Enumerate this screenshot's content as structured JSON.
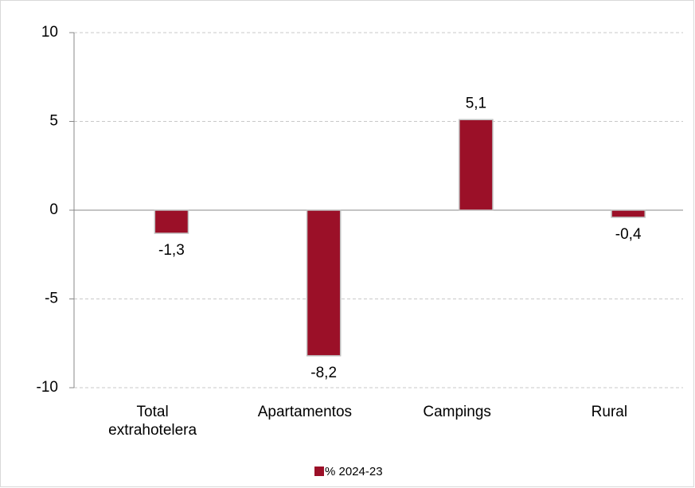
{
  "chart_data": {
    "type": "bar",
    "categories": [
      "Total extrahotelera",
      "Apartamentos",
      "Campings",
      "Rural"
    ],
    "series": [
      {
        "name": "% 2024-23",
        "color": "#9b1028",
        "values": [
          -1.3,
          -8.2,
          5.1,
          -0.4
        ],
        "value_labels": [
          "-1,3",
          "-8,2",
          "5,1",
          "-0,4"
        ]
      }
    ],
    "ylim": [
      -10,
      10
    ],
    "yticks": [
      -10,
      -5,
      0,
      5,
      10
    ],
    "grid": true,
    "legend": "bottom"
  }
}
